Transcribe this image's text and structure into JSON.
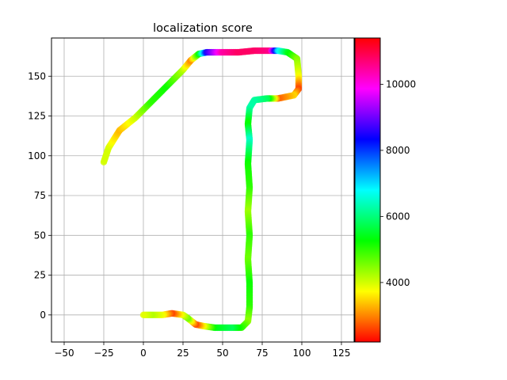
{
  "chart_data": {
    "type": "scatter",
    "title": "localization score",
    "xlabel": "",
    "ylabel": "",
    "xlim": [
      -58,
      133
    ],
    "ylim": [
      -17,
      174
    ],
    "xticks": [
      -50,
      -25,
      0,
      25,
      50,
      75,
      100,
      125
    ],
    "yticks": [
      0,
      25,
      50,
      75,
      100,
      125,
      150
    ],
    "xtick_labels": [
      "−50",
      "−25",
      "0",
      "25",
      "50",
      "75",
      "100",
      "125"
    ],
    "ytick_labels": [
      "0",
      "25",
      "50",
      "75",
      "100",
      "125",
      "150"
    ],
    "grid": true,
    "colormap": "hsv",
    "colorbar": {
      "range": [
        2200,
        11400
      ],
      "ticks": [
        4000,
        6000,
        8000,
        10000
      ],
      "tick_labels": [
        "4000",
        "6000",
        "8000",
        "10000"
      ]
    },
    "path_waypoints": [
      {
        "x": -25,
        "y": 96,
        "score": 4000
      },
      {
        "x": -22,
        "y": 105,
        "score": 4000
      },
      {
        "x": -15,
        "y": 116,
        "score": 3300
      },
      {
        "x": -5,
        "y": 124,
        "score": 4000
      },
      {
        "x": 5,
        "y": 134,
        "score": 5000
      },
      {
        "x": 15,
        "y": 144,
        "score": 5200
      },
      {
        "x": 25,
        "y": 154,
        "score": 4200
      },
      {
        "x": 30,
        "y": 160,
        "score": 3000
      },
      {
        "x": 35,
        "y": 164,
        "score": 5200
      },
      {
        "x": 40,
        "y": 165,
        "score": 8500
      },
      {
        "x": 50,
        "y": 165,
        "score": 10400
      },
      {
        "x": 60,
        "y": 165,
        "score": 10800
      },
      {
        "x": 70,
        "y": 166,
        "score": 10800
      },
      {
        "x": 80,
        "y": 166,
        "score": 10600
      },
      {
        "x": 85,
        "y": 166,
        "score": 7000
      },
      {
        "x": 91,
        "y": 165,
        "score": 5500
      },
      {
        "x": 97,
        "y": 161,
        "score": 4500
      },
      {
        "x": 98,
        "y": 150,
        "score": 3800
      },
      {
        "x": 98,
        "y": 142,
        "score": 2600
      },
      {
        "x": 95,
        "y": 138,
        "score": 3500
      },
      {
        "x": 85,
        "y": 136,
        "score": 2800
      },
      {
        "x": 78,
        "y": 136,
        "score": 5800
      },
      {
        "x": 70,
        "y": 135,
        "score": 6200
      },
      {
        "x": 67,
        "y": 130,
        "score": 6300
      },
      {
        "x": 66,
        "y": 120,
        "score": 5200
      },
      {
        "x": 67,
        "y": 110,
        "score": 6500
      },
      {
        "x": 66,
        "y": 95,
        "score": 5200
      },
      {
        "x": 67,
        "y": 80,
        "score": 5000
      },
      {
        "x": 66,
        "y": 65,
        "score": 4300
      },
      {
        "x": 67,
        "y": 50,
        "score": 5000
      },
      {
        "x": 66,
        "y": 35,
        "score": 4600
      },
      {
        "x": 67,
        "y": 20,
        "score": 5200
      },
      {
        "x": 67,
        "y": 5,
        "score": 5000
      },
      {
        "x": 66,
        "y": -4,
        "score": 4400
      },
      {
        "x": 62,
        "y": -8,
        "score": 5000
      },
      {
        "x": 55,
        "y": -8,
        "score": 5800
      },
      {
        "x": 45,
        "y": -8,
        "score": 5400
      },
      {
        "x": 38,
        "y": -7,
        "score": 3800
      },
      {
        "x": 33,
        "y": -6,
        "score": 2600
      },
      {
        "x": 28,
        "y": -2,
        "score": 4600
      },
      {
        "x": 25,
        "y": 0,
        "score": 4000
      },
      {
        "x": 18,
        "y": 1,
        "score": 2600
      },
      {
        "x": 12,
        "y": 0,
        "score": 3800
      },
      {
        "x": 5,
        "y": 0,
        "score": 4200
      },
      {
        "x": 0,
        "y": 0,
        "score": 3900
      }
    ]
  }
}
